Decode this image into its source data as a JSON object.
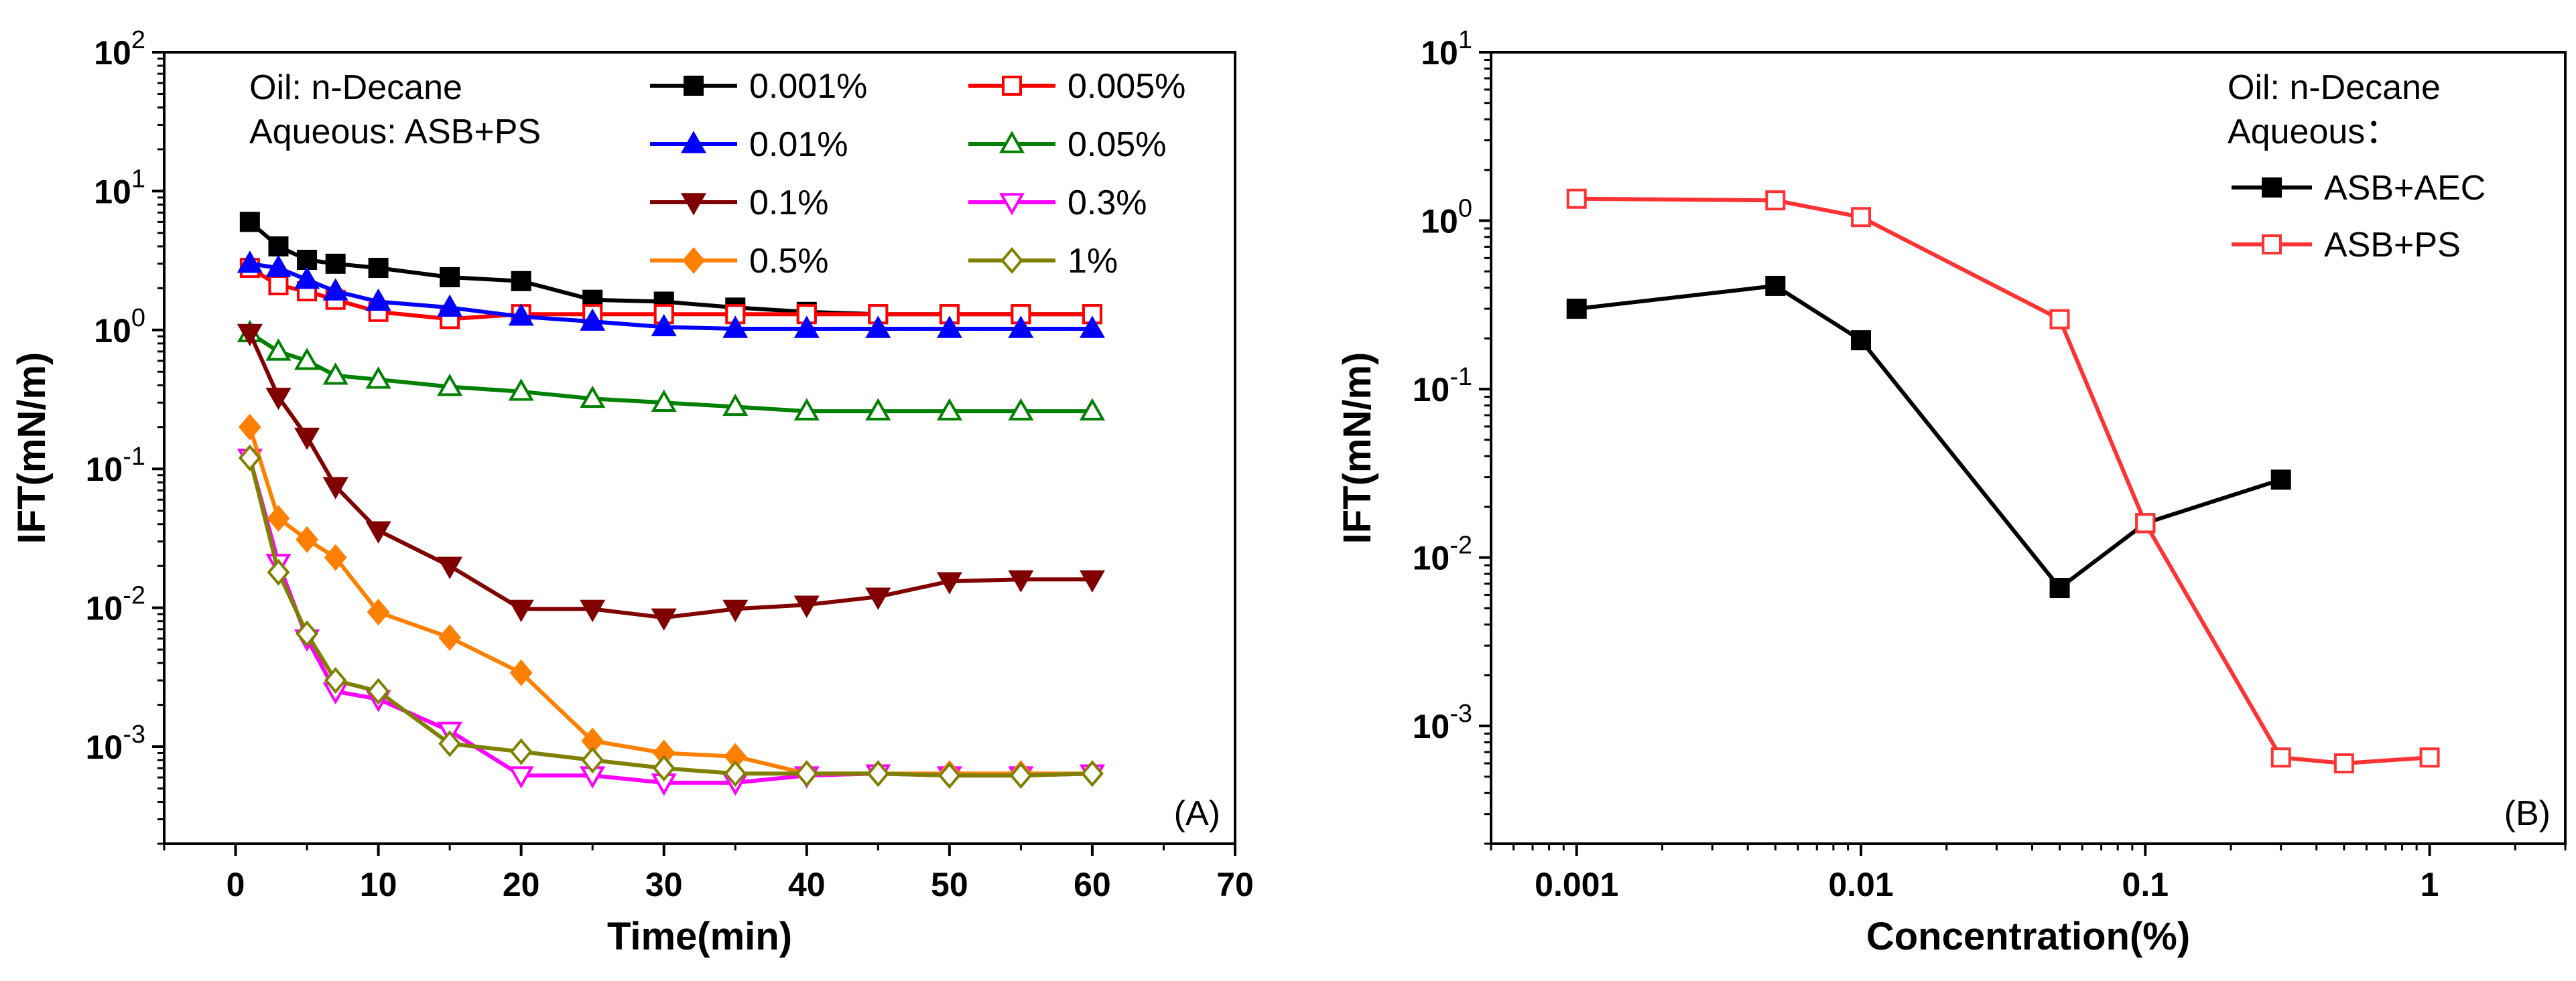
{
  "chart_data": [
    {
      "type": "line",
      "panel_label": "(A)",
      "xlabel": "Time(min)",
      "ylabel": "IFT(mN/m)",
      "xscale": "linear",
      "yscale": "log",
      "xlim": [
        -5,
        70
      ],
      "ylim": [
        0.0002,
        100
      ],
      "xticks": [
        0,
        10,
        20,
        30,
        40,
        50,
        60,
        70
      ],
      "xtick_labels": [
        "0",
        "10",
        "20",
        "30",
        "40",
        "50",
        "60",
        "70"
      ],
      "yticks": [
        0.001,
        0.01,
        0.1,
        1,
        10,
        100
      ],
      "ytick_labels": [
        {
          "base": "10",
          "exp": "-3"
        },
        {
          "base": "10",
          "exp": "-2"
        },
        {
          "base": "10",
          "exp": "-1"
        },
        {
          "base": "10",
          "exp": "0"
        },
        {
          "base": "10",
          "exp": "1"
        },
        {
          "base": "10",
          "exp": "2"
        }
      ],
      "annotations": [
        "Oil: n-Decane",
        "Aqueous: ASB+PS"
      ],
      "legend_position": "top-right",
      "series": [
        {
          "name": "0.001%",
          "color": "#000000",
          "marker": "square",
          "fill": true,
          "x": [
            1,
            3,
            5,
            7,
            10,
            15,
            20,
            25,
            30,
            35,
            40,
            45,
            50,
            55,
            60
          ],
          "y": [
            6.0,
            4.0,
            3.2,
            3.0,
            2.8,
            2.4,
            2.25,
            1.65,
            1.6,
            1.45,
            1.35,
            1.3,
            1.3,
            1.3,
            1.3
          ]
        },
        {
          "name": "0.005%",
          "color": "#ff0000",
          "marker": "square",
          "fill": false,
          "x": [
            1,
            3,
            5,
            7,
            10,
            15,
            20,
            25,
            30,
            35,
            40,
            45,
            50,
            55,
            60
          ],
          "y": [
            2.8,
            2.1,
            1.9,
            1.65,
            1.35,
            1.2,
            1.3,
            1.3,
            1.3,
            1.3,
            1.3,
            1.3,
            1.3,
            1.3,
            1.3
          ]
        },
        {
          "name": "0.01%",
          "color": "#0000ff",
          "marker": "triangle-up",
          "fill": true,
          "x": [
            1,
            3,
            5,
            7,
            10,
            15,
            20,
            25,
            30,
            35,
            40,
            45,
            50,
            55,
            60
          ],
          "y": [
            3.0,
            2.8,
            2.3,
            1.9,
            1.6,
            1.45,
            1.25,
            1.15,
            1.05,
            1.02,
            1.02,
            1.02,
            1.02,
            1.02,
            1.02
          ]
        },
        {
          "name": "0.05%",
          "color": "#008000",
          "marker": "triangle-up",
          "fill": false,
          "x": [
            1,
            3,
            5,
            7,
            10,
            15,
            20,
            25,
            30,
            35,
            40,
            45,
            50,
            55,
            60
          ],
          "y": [
            0.95,
            0.7,
            0.6,
            0.47,
            0.44,
            0.39,
            0.36,
            0.32,
            0.3,
            0.28,
            0.26,
            0.26,
            0.26,
            0.26,
            0.26
          ]
        },
        {
          "name": "0.1%",
          "color": "#800000",
          "marker": "triangle-down",
          "fill": true,
          "x": [
            1,
            3,
            5,
            7,
            10,
            15,
            20,
            25,
            30,
            35,
            40,
            45,
            50,
            55,
            60
          ],
          "y": [
            0.95,
            0.33,
            0.17,
            0.075,
            0.036,
            0.02,
            0.0098,
            0.0098,
            0.0085,
            0.0098,
            0.0105,
            0.012,
            0.0155,
            0.016,
            0.016
          ]
        },
        {
          "name": "0.3%",
          "color": "#ff00ff",
          "marker": "triangle-down",
          "fill": false,
          "x": [
            1,
            3,
            5,
            7,
            10,
            15,
            20,
            25,
            30,
            35,
            40,
            45,
            50,
            55,
            60
          ],
          "y": [
            0.12,
            0.021,
            0.006,
            0.0025,
            0.0022,
            0.0013,
            0.00062,
            0.00062,
            0.00055,
            0.00055,
            0.00062,
            0.00064,
            0.00062,
            0.00062,
            0.00064
          ]
        },
        {
          "name": "0.5%",
          "color": "#ff8000",
          "marker": "diamond",
          "fill": true,
          "x": [
            1,
            3,
            5,
            7,
            10,
            15,
            20,
            25,
            30,
            35,
            40,
            45,
            50,
            55,
            60
          ],
          "y": [
            0.2,
            0.044,
            0.031,
            0.023,
            0.0093,
            0.0061,
            0.0034,
            0.0011,
            0.0009,
            0.00085,
            0.00064,
            0.00064,
            0.00064,
            0.00064,
            0.00064
          ]
        },
        {
          "name": "1%",
          "color": "#808000",
          "marker": "diamond",
          "fill": false,
          "x": [
            1,
            3,
            5,
            7,
            10,
            15,
            20,
            25,
            30,
            35,
            40,
            45,
            50,
            55,
            60
          ],
          "y": [
            0.12,
            0.018,
            0.0065,
            0.003,
            0.0025,
            0.00105,
            0.00092,
            0.0008,
            0.0007,
            0.00064,
            0.00064,
            0.00064,
            0.00062,
            0.00062,
            0.00064
          ]
        }
      ]
    },
    {
      "type": "line",
      "panel_label": "(B)",
      "xlabel": "Concentration(%)",
      "ylabel": "IFT(mN/m)",
      "xscale": "log",
      "yscale": "log",
      "xlim": [
        0.0005,
        3
      ],
      "ylim": [
        0.0002,
        10
      ],
      "xticks": [
        0.001,
        0.01,
        0.1,
        1
      ],
      "xtick_labels": [
        "0.001",
        "0.01",
        "0.1",
        "1"
      ],
      "yticks": [
        0.001,
        0.01,
        0.1,
        1,
        10
      ],
      "ytick_labels": [
        {
          "base": "10",
          "exp": "-3"
        },
        {
          "base": "10",
          "exp": "-2"
        },
        {
          "base": "10",
          "exp": "-1"
        },
        {
          "base": "10",
          "exp": "0"
        },
        {
          "base": "10",
          "exp": "1"
        }
      ],
      "annotations": [
        "Oil: n-Decane",
        "Aqueous："
      ],
      "legend_position": "top-right",
      "series": [
        {
          "name": "ASB+AEC",
          "color": "#000000",
          "marker": "square",
          "fill": true,
          "x": [
            0.001,
            0.005,
            0.01,
            0.05,
            0.1,
            0.3
          ],
          "y": [
            0.3,
            0.41,
            0.195,
            0.0066,
            0.016,
            0.029
          ]
        },
        {
          "name": "ASB+PS",
          "color": "#ff3333",
          "marker": "square",
          "fill": false,
          "x": [
            0.001,
            0.005,
            0.01,
            0.05,
            0.1,
            0.3,
            0.5,
            1
          ],
          "y": [
            1.35,
            1.32,
            1.05,
            0.26,
            0.016,
            0.00065,
            0.0006,
            0.00065
          ]
        }
      ]
    }
  ]
}
